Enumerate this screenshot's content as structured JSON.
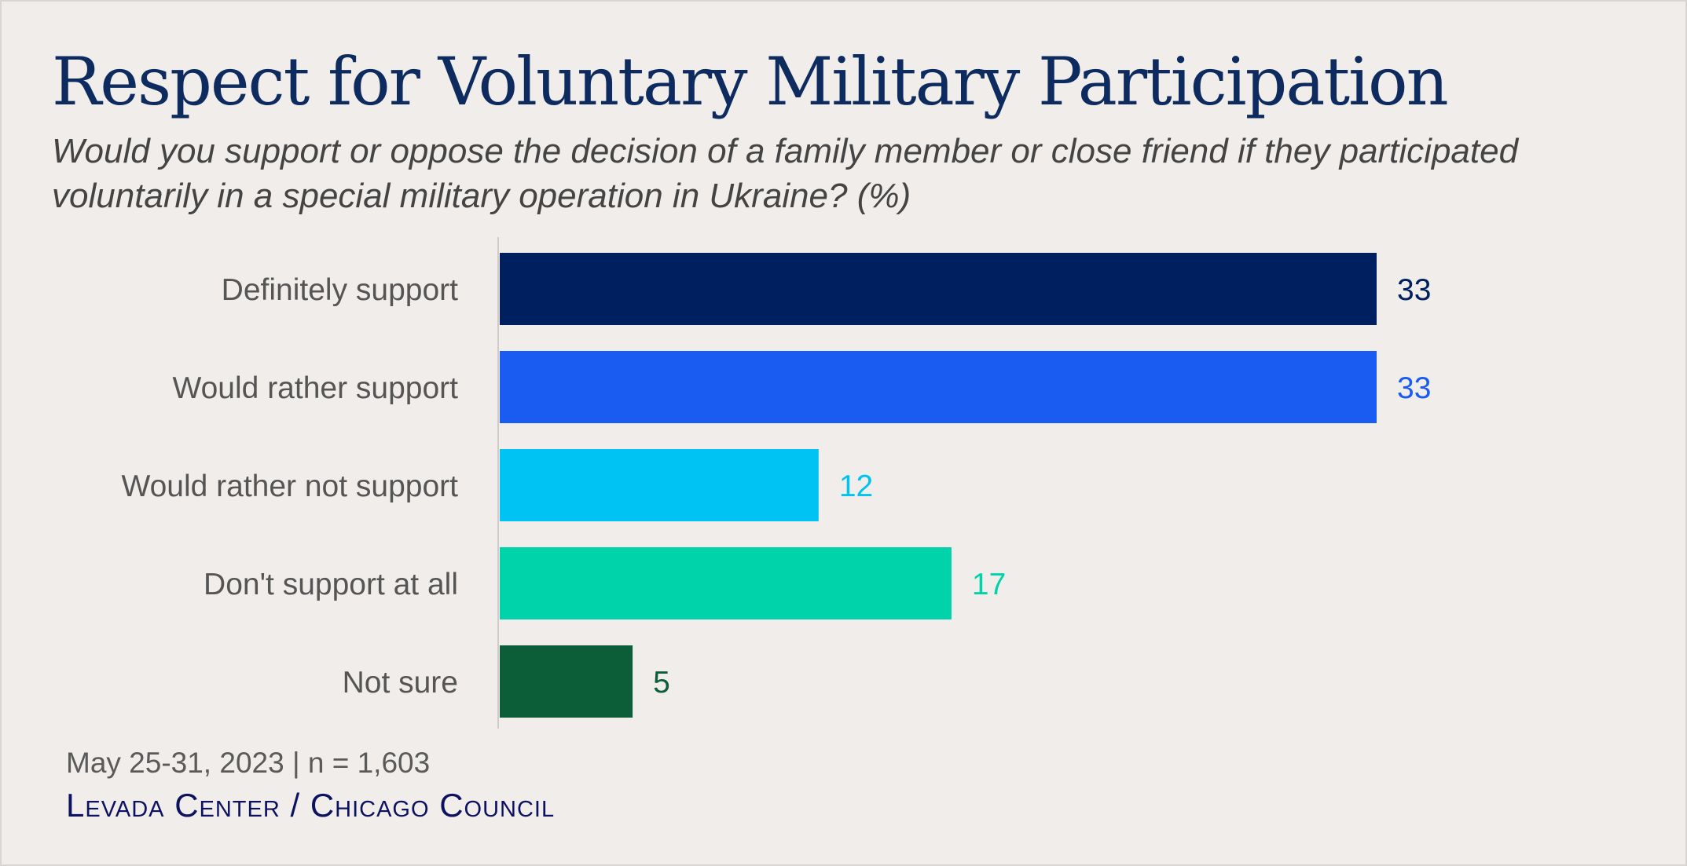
{
  "header": {
    "title": "Respect for Voluntary Military Participation",
    "subtitle": "Would you support or oppose the decision of a family member or close friend if they participated voluntarily in a special military operation in Ukraine? (%)"
  },
  "footer": {
    "note": "May 25-31, 2023 | n = 1,603",
    "source": "Levada Center / Chicago Council"
  },
  "chart_data": {
    "type": "bar",
    "orientation": "horizontal",
    "categories": [
      "Definitely support",
      "Would rather support",
      "Would rather not support",
      "Don't support at all",
      "Not sure"
    ],
    "values": [
      33,
      33,
      12,
      17,
      5
    ],
    "colors": [
      "#001f5f",
      "#1a5cf2",
      "#00c3f3",
      "#00d3a9",
      "#0b5e38"
    ],
    "xlim": [
      0,
      33
    ],
    "grid": false,
    "legend": "none",
    "data_labels": true
  }
}
